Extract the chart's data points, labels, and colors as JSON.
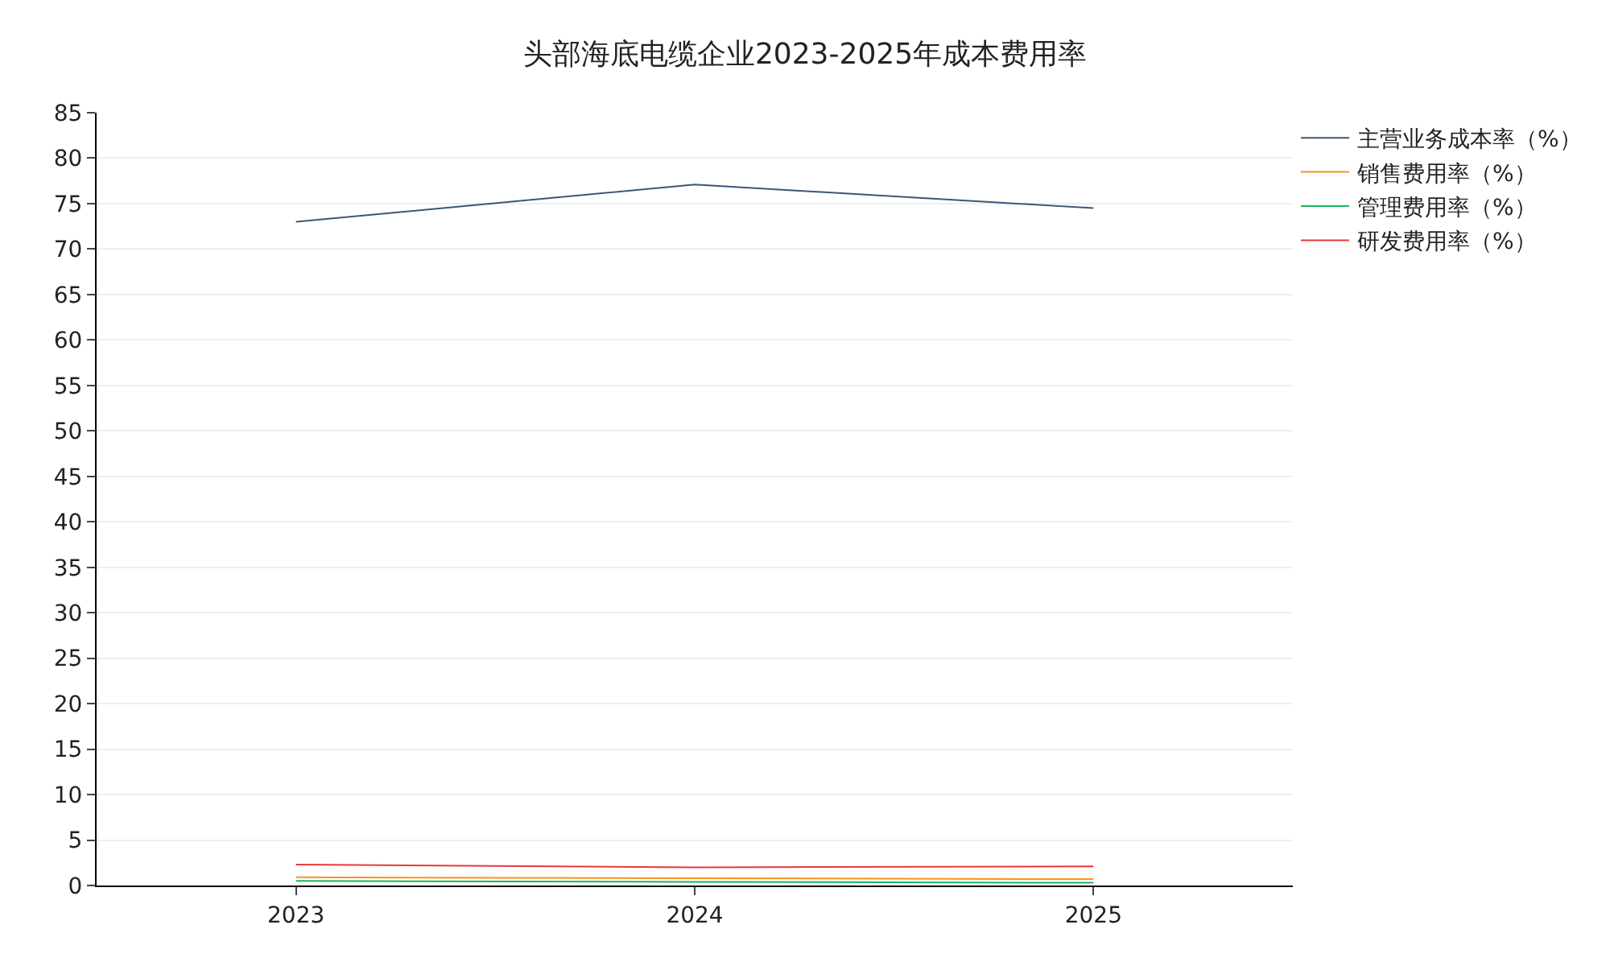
{
  "chart_data": {
    "type": "line",
    "title": "头部海底电缆企业2023-2025年成本费用率",
    "x": [
      2023,
      2024,
      2025
    ],
    "xlim": [
      2022.5,
      2025.5
    ],
    "xticks": [
      2023,
      2024,
      2025
    ],
    "ylim": [
      0,
      85
    ],
    "yticks": [
      0,
      5,
      10,
      15,
      20,
      25,
      30,
      35,
      40,
      45,
      50,
      55,
      60,
      65,
      70,
      75,
      80,
      85
    ],
    "series": [
      {
        "name": "主营业务成本率（%）",
        "color": "#3e5576",
        "values": [
          73.0,
          77.1,
          74.5
        ]
      },
      {
        "name": "销售费用率（%）",
        "color": "#f7941d",
        "values": [
          0.9,
          0.8,
          0.7
        ]
      },
      {
        "name": "管理费用率（%）",
        "color": "#16b858",
        "values": [
          0.5,
          0.4,
          0.3
        ]
      },
      {
        "name": "研发费用率（%）",
        "color": "#e8383d",
        "values": [
          2.3,
          2.0,
          2.1
        ]
      }
    ],
    "grid": "y",
    "legend": "top right",
    "marker": "none",
    "line_style": "solid"
  }
}
